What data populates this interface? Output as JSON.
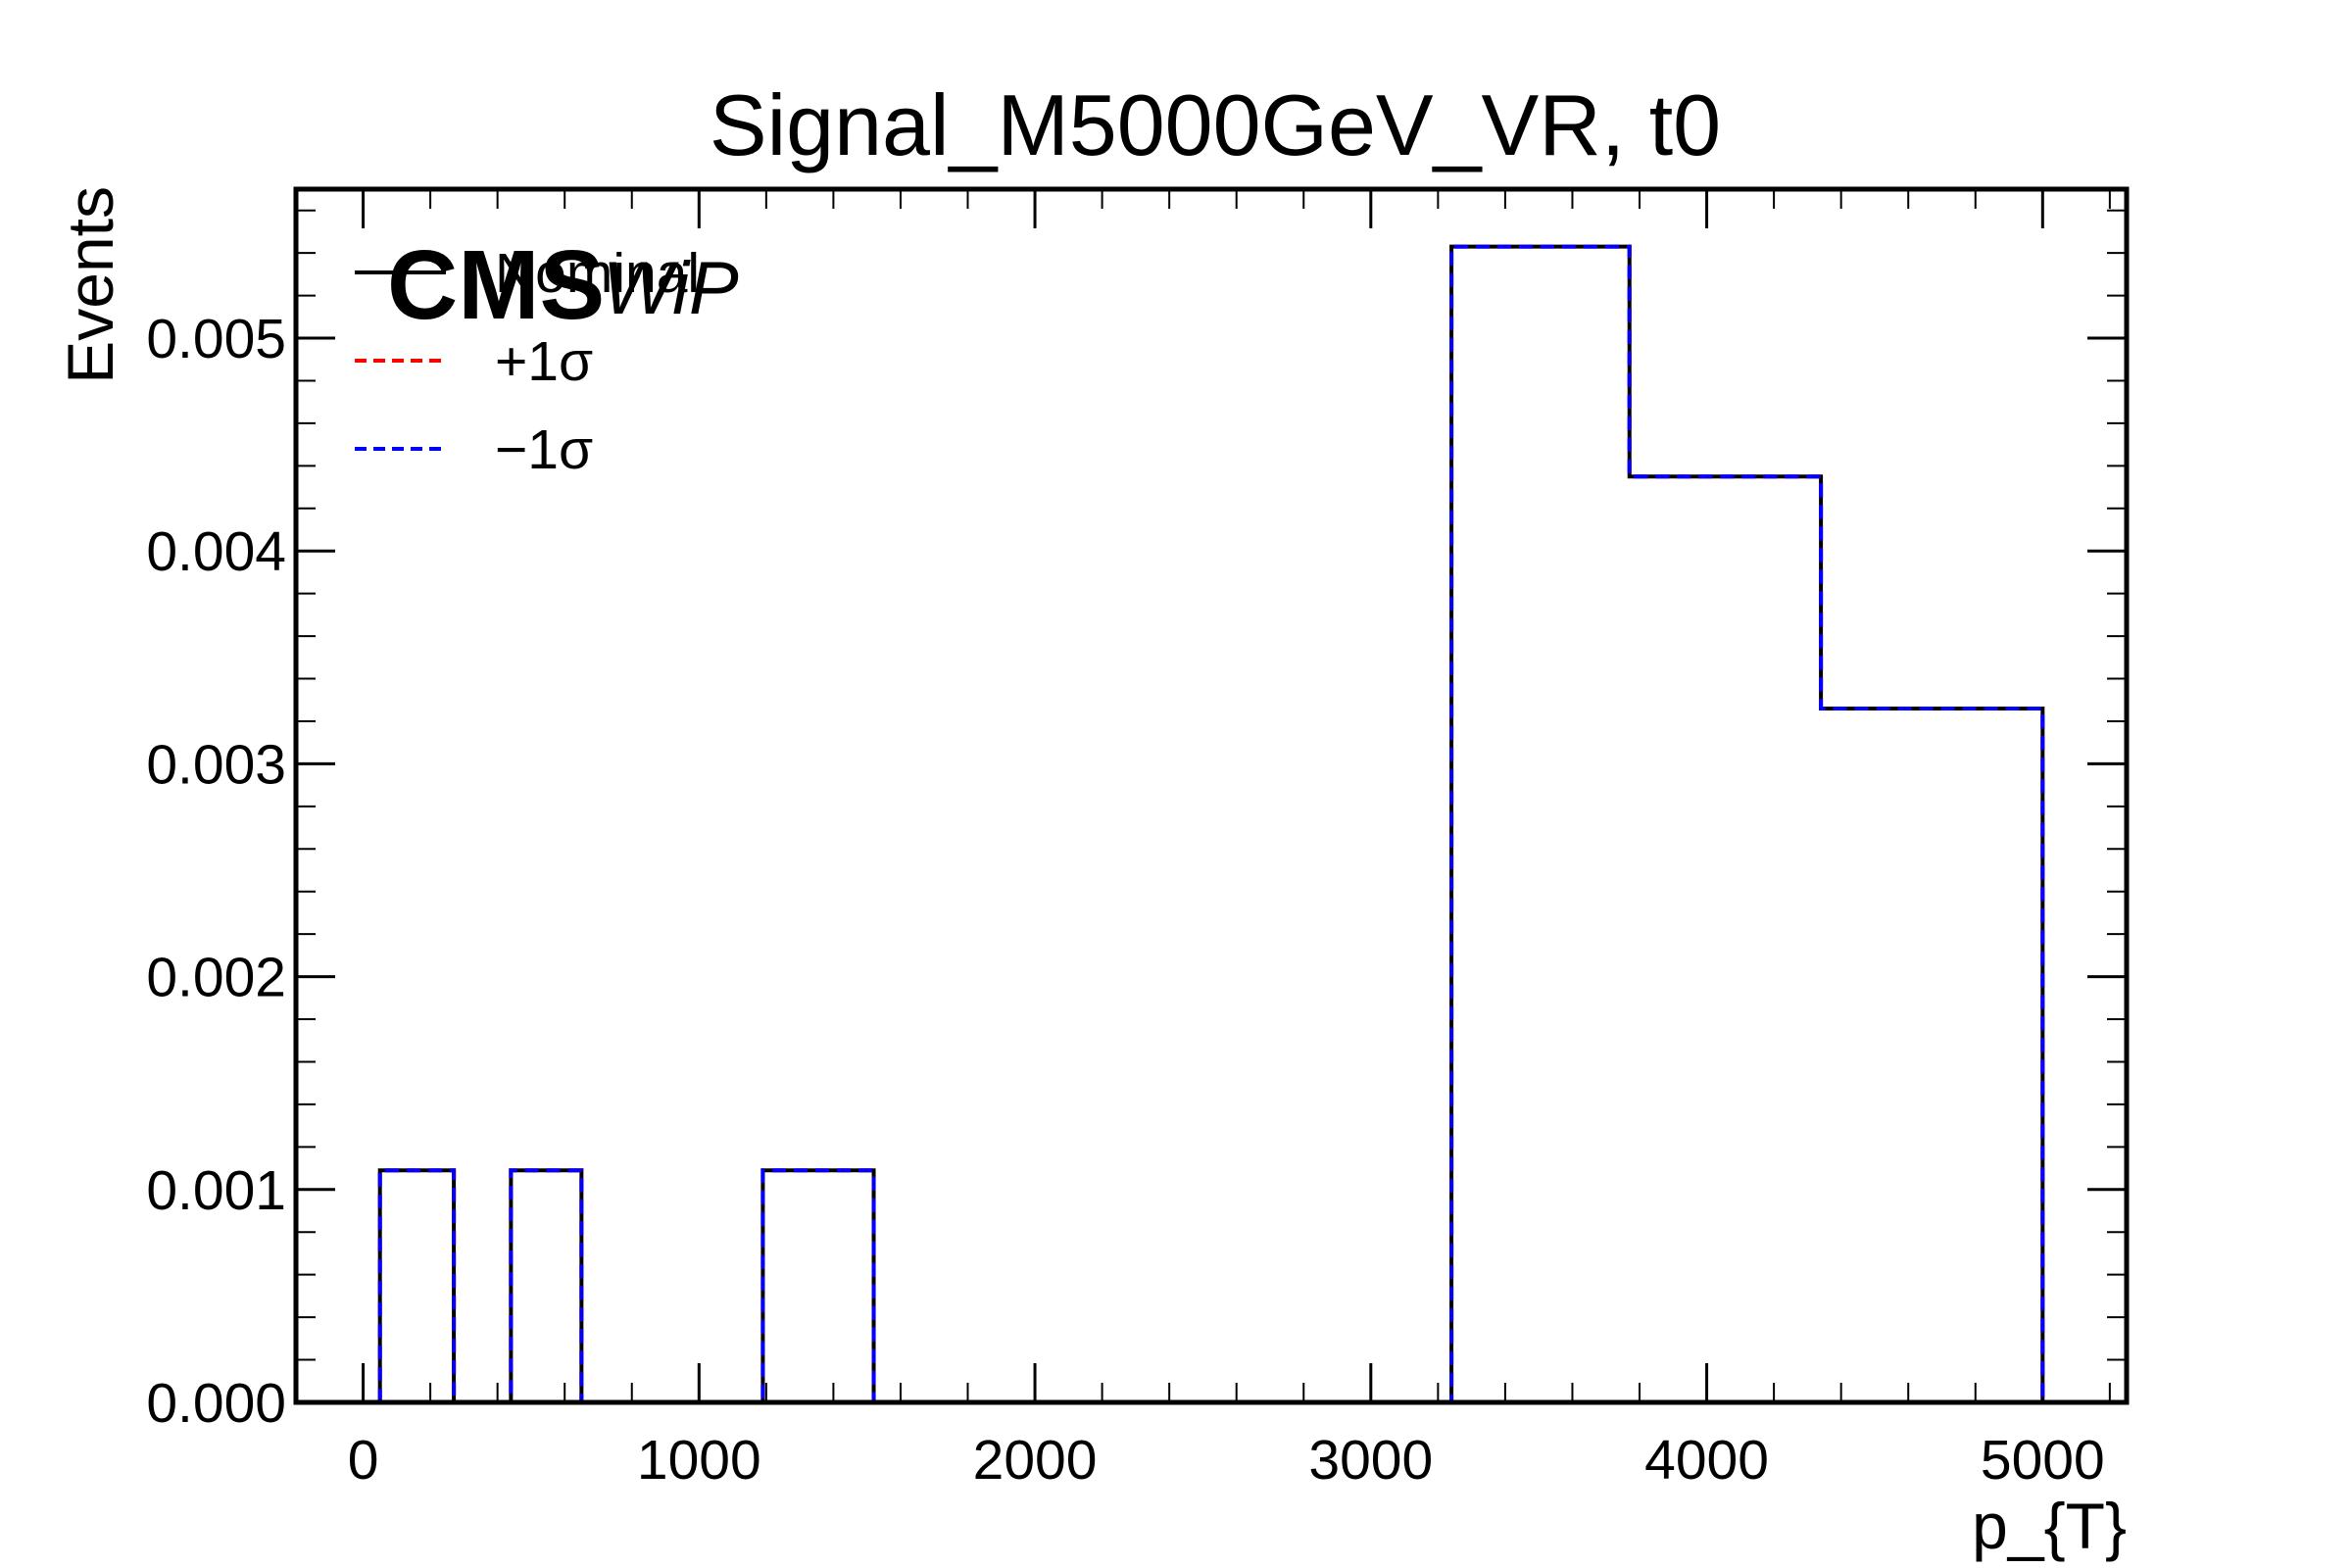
{
  "chart_data": {
    "type": "histogram",
    "title": "Signal_M5000GeV_VR, t0",
    "xlabel": "p_{T}",
    "ylabel": "Events",
    "xlim": [
      -200,
      5250
    ],
    "ylim": [
      0,
      0.0057
    ],
    "xticks": [
      0,
      1000,
      2000,
      3000,
      4000,
      5000
    ],
    "xtick_labels": [
      "0",
      "1000",
      "2000",
      "3000",
      "4000",
      "5000"
    ],
    "yticks": [
      0,
      0.001,
      0.002,
      0.003,
      0.004,
      0.005
    ],
    "ytick_labels": [
      "0.000",
      "0.001",
      "0.002",
      "0.003",
      "0.004",
      "0.005"
    ],
    "bin_edges": [
      50,
      270,
      440,
      650,
      1190,
      1520,
      3240,
      3770,
      4340,
      5000
    ],
    "series": [
      {
        "name": "Nominal",
        "color": "#000000",
        "style": "solid",
        "values": [
          0.00109,
          0,
          0.00109,
          0,
          0.00109,
          0,
          0.00543,
          0.00435,
          0.00326
        ]
      },
      {
        "name": "+1σ",
        "color": "#ff0000",
        "style": "dashed",
        "values": [
          0.00109,
          0,
          0.00109,
          0,
          0.00109,
          0,
          0.00543,
          0.00435,
          0.00326
        ]
      },
      {
        "name": "−1σ",
        "color": "#0000ff",
        "style": "dashed",
        "values": [
          0.00109,
          0,
          0.00109,
          0,
          0.00109,
          0,
          0.00543,
          0.00435,
          0.00326
        ]
      }
    ],
    "legend_position": "top-left",
    "grid": false,
    "experiment_label": "CMS",
    "experiment_sublabel": "WiP"
  }
}
